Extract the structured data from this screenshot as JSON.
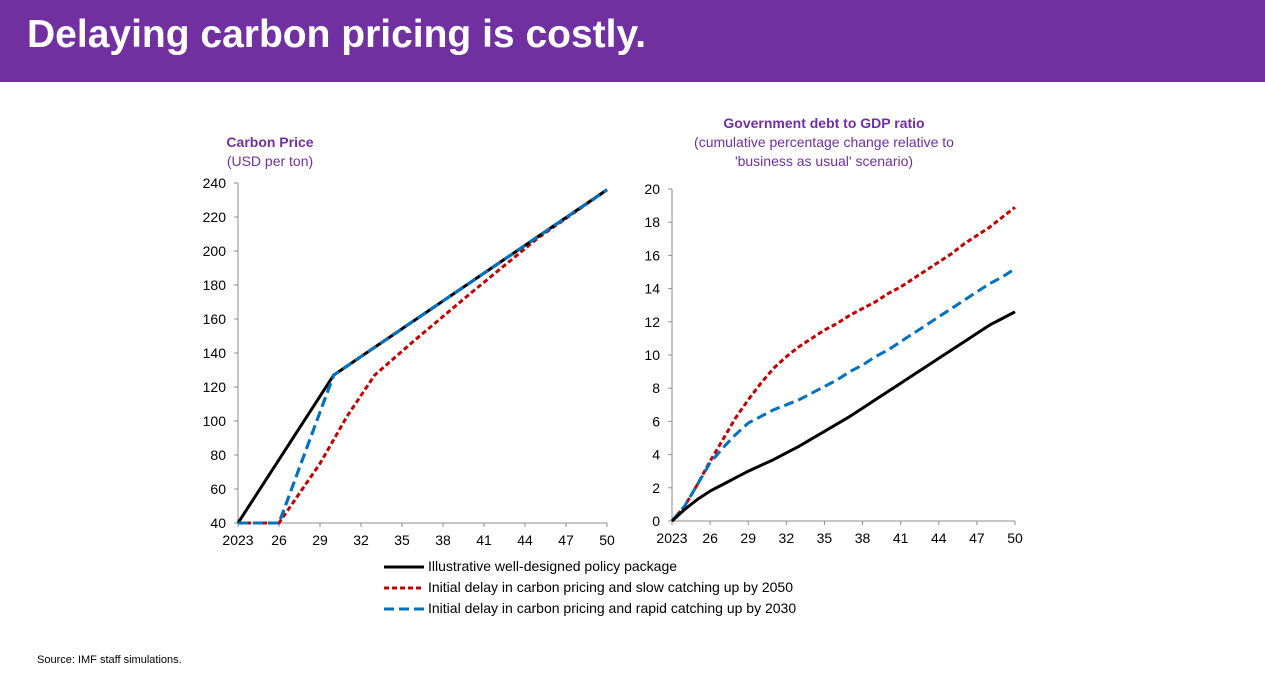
{
  "slide": {
    "title": "Delaying carbon pricing is costly.",
    "source": "Source: IMF staff simulations."
  },
  "colors": {
    "banner": "#7030a0",
    "title_text": "#ffffff",
    "chart_title": "#7030a0",
    "series_black": "#000000",
    "series_red": "#c00000",
    "series_blue": "#0070c0"
  },
  "legend": [
    {
      "label": "Illustrative well-designed policy package",
      "color": "#000000",
      "dash": "solid"
    },
    {
      "label": "Initial delay in carbon pricing and slow catching up by 2050",
      "color": "#c00000",
      "dash": "dashed"
    },
    {
      "label": "Initial delay in carbon pricing and rapid catching up by 2030",
      "color": "#0070c0",
      "dash": "dashed"
    }
  ],
  "chart_data": [
    {
      "type": "line",
      "title": "Carbon Price",
      "subtitle": "(USD per ton)",
      "xlim": [
        2023,
        2050
      ],
      "ylim": [
        40,
        240
      ],
      "xticks": [
        2023,
        2026,
        2029,
        2032,
        2035,
        2038,
        2041,
        2044,
        2047,
        2050
      ],
      "xtick_labels": [
        "2023",
        "26",
        "29",
        "32",
        "35",
        "38",
        "41",
        "44",
        "47",
        "50"
      ],
      "yticks": [
        40,
        60,
        80,
        100,
        120,
        140,
        160,
        180,
        200,
        220,
        240
      ],
      "grid": false,
      "series": [
        {
          "name": "Illustrative well-designed policy package",
          "color": "#000000",
          "dash": "solid",
          "x": [
            2023,
            2030,
            2050
          ],
          "y": [
            40,
            127,
            236
          ]
        },
        {
          "name": "Initial delay in carbon pricing and slow catching up by 2050",
          "color": "#c00000",
          "dash": "dashed",
          "x": [
            2023,
            2026,
            2029,
            2031,
            2033,
            2036,
            2040,
            2045,
            2050
          ],
          "y": [
            40,
            40,
            75,
            103,
            127,
            148,
            175,
            208,
            236
          ]
        },
        {
          "name": "Initial delay in carbon pricing and rapid catching up by 2030",
          "color": "#0070c0",
          "dash": "dashed",
          "x": [
            2023,
            2026,
            2030,
            2050
          ],
          "y": [
            40,
            40,
            127,
            236
          ]
        }
      ]
    },
    {
      "type": "line",
      "title": "Government debt to GDP ratio",
      "subtitle": [
        "(cumulative percentage change relative to",
        "'business as usual' scenario)"
      ],
      "xlim": [
        2023,
        2050
      ],
      "ylim": [
        0,
        20
      ],
      "xticks": [
        2023,
        2026,
        2029,
        2032,
        2035,
        2038,
        2041,
        2044,
        2047,
        2050
      ],
      "xtick_labels": [
        "2023",
        "26",
        "29",
        "32",
        "35",
        "38",
        "41",
        "44",
        "47",
        "50"
      ],
      "yticks": [
        0,
        2,
        4,
        6,
        8,
        10,
        12,
        14,
        16,
        18,
        20
      ],
      "grid": false,
      "series": [
        {
          "name": "Illustrative well-designed policy package",
          "color": "#000000",
          "dash": "solid",
          "x": [
            2023,
            2024,
            2025,
            2026,
            2027,
            2028,
            2029,
            2030,
            2031,
            2032,
            2033,
            2034,
            2035,
            2036,
            2037,
            2038,
            2039,
            2040,
            2041,
            2042,
            2043,
            2044,
            2045,
            2046,
            2047,
            2048,
            2049,
            2050
          ],
          "y": [
            0,
            0.7,
            1.3,
            1.8,
            2.2,
            2.6,
            3.0,
            3.35,
            3.7,
            4.1,
            4.5,
            4.95,
            5.4,
            5.85,
            6.3,
            6.8,
            7.3,
            7.8,
            8.3,
            8.8,
            9.3,
            9.8,
            10.3,
            10.8,
            11.3,
            11.8,
            12.2,
            12.6
          ]
        },
        {
          "name": "Initial delay in carbon pricing and slow catching up by 2050",
          "color": "#c00000",
          "dash": "dashed",
          "x": [
            2023,
            2024,
            2025,
            2026,
            2027,
            2028,
            2029,
            2030,
            2031,
            2032,
            2033,
            2034,
            2035,
            2036,
            2037,
            2038,
            2039,
            2040,
            2041,
            2042,
            2043,
            2044,
            2045,
            2046,
            2047,
            2048,
            2049,
            2050
          ],
          "y": [
            0,
            0.9,
            2.2,
            3.6,
            4.9,
            6.2,
            7.3,
            8.3,
            9.2,
            9.9,
            10.5,
            11.0,
            11.5,
            11.9,
            12.4,
            12.8,
            13.2,
            13.7,
            14.1,
            14.6,
            15.1,
            15.6,
            16.1,
            16.7,
            17.2,
            17.7,
            18.3,
            18.9
          ]
        },
        {
          "name": "Initial delay in carbon pricing and rapid catching up by 2030",
          "color": "#0070c0",
          "dash": "dashed",
          "x": [
            2023,
            2024,
            2025,
            2026,
            2027,
            2028,
            2029,
            2030,
            2031,
            2032,
            2033,
            2034,
            2035,
            2036,
            2037,
            2038,
            2039,
            2040,
            2041,
            2042,
            2043,
            2044,
            2045,
            2046,
            2047,
            2048,
            2049,
            2050
          ],
          "y": [
            0,
            0.9,
            2.2,
            3.5,
            4.4,
            5.2,
            5.9,
            6.3,
            6.7,
            7.0,
            7.3,
            7.7,
            8.1,
            8.5,
            9.0,
            9.4,
            9.9,
            10.3,
            10.8,
            11.3,
            11.8,
            12.3,
            12.8,
            13.3,
            13.8,
            14.3,
            14.7,
            15.2
          ]
        }
      ]
    }
  ]
}
